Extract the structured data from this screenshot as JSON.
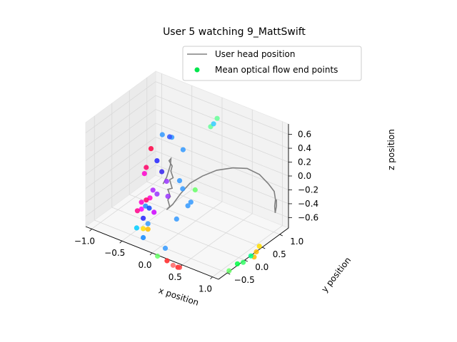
{
  "chart_data": {
    "type": "scatter",
    "title": "User 5 watching 9_MattSwift",
    "xlabel": "x position",
    "ylabel": "y position",
    "zlabel": "z position",
    "x_ticks": [
      "−1.0",
      "−0.5",
      "0.0",
      "0.5",
      "1.0"
    ],
    "y_ticks": [
      "−0.5",
      "0.0",
      "0.5",
      "1.0"
    ],
    "z_ticks": [
      "−0.6",
      "−0.4",
      "−0.2",
      "0.0",
      "0.2",
      "0.4",
      "0.6"
    ],
    "xlim": [
      -1.1,
      1.1
    ],
    "ylim": [
      -0.75,
      1.25
    ],
    "zlim": [
      -0.75,
      0.75
    ],
    "legend_position": "top-right",
    "legend": [
      {
        "label": "User head position",
        "kind": "line",
        "color": "#808080"
      },
      {
        "label": "Mean optical flow end points",
        "kind": "marker",
        "color": "#00e64d"
      }
    ],
    "series": [
      {
        "name": "User head position",
        "color": "#808080",
        "points": [
          [
            -0.08,
            -0.3,
            0.05
          ],
          [
            -0.03,
            -0.28,
            0.16
          ],
          [
            0.03,
            -0.28,
            0.35
          ],
          [
            0.04,
            -0.28,
            0.45
          ],
          [
            0.02,
            -0.3,
            0.42
          ],
          [
            0.06,
            -0.28,
            0.35
          ],
          [
            0.05,
            -0.3,
            0.28
          ],
          [
            0.07,
            -0.27,
            0.18
          ],
          [
            0.03,
            -0.3,
            0.15
          ],
          [
            0.06,
            -0.28,
            0.03
          ],
          [
            0.0,
            -0.3,
            0.0
          ],
          [
            0.03,
            -0.28,
            -0.1
          ],
          [
            0.0,
            -0.3,
            -0.15
          ],
          [
            0.02,
            -0.28,
            -0.25
          ],
          [
            -0.02,
            -0.3,
            -0.3
          ],
          [
            0.05,
            -0.25,
            -0.22
          ],
          [
            0.15,
            -0.2,
            -0.05
          ],
          [
            0.25,
            -0.1,
            0.1
          ],
          [
            0.4,
            0.0,
            0.22
          ],
          [
            0.55,
            0.15,
            0.3
          ],
          [
            0.72,
            0.32,
            0.33
          ],
          [
            0.85,
            0.5,
            0.3
          ],
          [
            0.95,
            0.68,
            0.18
          ],
          [
            1.0,
            0.85,
            0.0
          ],
          [
            1.02,
            0.98,
            -0.15
          ],
          [
            1.0,
            1.05,
            -0.3
          ],
          [
            0.97,
            1.08,
            -0.42
          ],
          [
            0.99,
            1.06,
            -0.5
          ],
          [
            1.0,
            1.08,
            -0.4
          ],
          [
            1.01,
            1.06,
            -0.3
          ]
        ]
      },
      {
        "name": "Mean optical flow end points",
        "points": [
          [
            0.1,
            0.75,
            0.55,
            "#66ff99"
          ],
          [
            0.15,
            0.85,
            0.65,
            "#66ff99"
          ],
          [
            0.12,
            0.8,
            0.58,
            "#33ccff"
          ],
          [
            -0.15,
            -0.2,
            0.7,
            "#3399ff"
          ],
          [
            -0.05,
            -0.1,
            0.66,
            "#3399ff"
          ],
          [
            0.0,
            -0.25,
            0.74,
            "#3355ff"
          ],
          [
            0.05,
            0.05,
            0.46,
            "#3399ff"
          ],
          [
            -0.25,
            -0.35,
            0.52,
            "#ff0044"
          ],
          [
            -0.15,
            -0.35,
            0.38,
            "#2222ff"
          ],
          [
            -0.1,
            -0.3,
            0.22,
            "#3322ee"
          ],
          [
            -0.05,
            -0.25,
            0.08,
            "#9933ff"
          ],
          [
            0.0,
            -0.3,
            -0.1,
            "#9933ff"
          ],
          [
            0.05,
            -0.05,
            0.05,
            "#3399ff"
          ],
          [
            0.1,
            -0.05,
            -0.05,
            "#3399ff"
          ],
          [
            0.25,
            0.05,
            -0.05,
            "#66ff66"
          ],
          [
            -0.3,
            -0.4,
            0.25,
            "#ff0066"
          ],
          [
            -0.3,
            -0.45,
            0.18,
            "#ff00cc"
          ],
          [
            -0.2,
            -0.38,
            -0.05,
            "#aa22ff"
          ],
          [
            -0.15,
            -0.35,
            -0.1,
            "#9933ff"
          ],
          [
            -0.25,
            -0.38,
            -0.18,
            "#ff00cc"
          ],
          [
            -0.3,
            -0.4,
            -0.22,
            "#ff0066"
          ],
          [
            -0.35,
            -0.45,
            -0.25,
            "#ff00cc"
          ],
          [
            -0.3,
            -0.42,
            -0.3,
            "#2288ff"
          ],
          [
            -0.25,
            -0.4,
            -0.32,
            "#1144ff"
          ],
          [
            -0.35,
            -0.45,
            -0.35,
            "#ff00ff"
          ],
          [
            -0.2,
            -0.35,
            -0.38,
            "#cc00ff"
          ],
          [
            -0.4,
            -0.48,
            -0.38,
            "#ff0088"
          ],
          [
            -0.35,
            -0.4,
            -0.5,
            "#2222ff"
          ],
          [
            -0.4,
            -0.5,
            -0.62,
            "#00ccff"
          ],
          [
            -0.3,
            -0.35,
            -0.58,
            "#3399ff"
          ],
          [
            -0.35,
            -0.4,
            -0.65,
            "#ffdd00"
          ],
          [
            -0.3,
            -0.35,
            -0.66,
            "#ffbb00"
          ],
          [
            0.1,
            0.1,
            -0.35,
            "#3399ff"
          ],
          [
            0.15,
            0.1,
            -0.28,
            "#3399ff"
          ],
          [
            0.0,
            -0.05,
            -0.52,
            "#3399ff"
          ],
          [
            -0.35,
            -0.4,
            -0.78,
            "#1188ff"
          ],
          [
            -0.1,
            -0.2,
            -0.92,
            "#3399ff"
          ],
          [
            -0.2,
            -0.25,
            -1.05,
            "#66ff66"
          ],
          [
            -0.1,
            -0.15,
            -1.12,
            "#ff2222"
          ],
          [
            0.05,
            -0.1,
            -1.18,
            "#ff2222"
          ],
          [
            0.0,
            -0.15,
            -1.15,
            "#ff6666"
          ],
          [
            0.05,
            -0.05,
            -1.2,
            "#ff4444"
          ],
          [
            0.55,
            0.5,
            -1.28,
            "#66ff66"
          ],
          [
            0.62,
            0.62,
            -1.2,
            "#00ff44"
          ],
          [
            0.68,
            0.68,
            -1.18,
            "#33ff66"
          ],
          [
            0.8,
            0.85,
            -1.05,
            "#ffbb00"
          ],
          [
            0.78,
            0.82,
            -1.12,
            "#ffbb00"
          ],
          [
            0.82,
            0.9,
            -0.98,
            "#ffdd00"
          ],
          [
            0.75,
            0.78,
            -1.1,
            "#00ff88"
          ]
        ]
      }
    ]
  }
}
